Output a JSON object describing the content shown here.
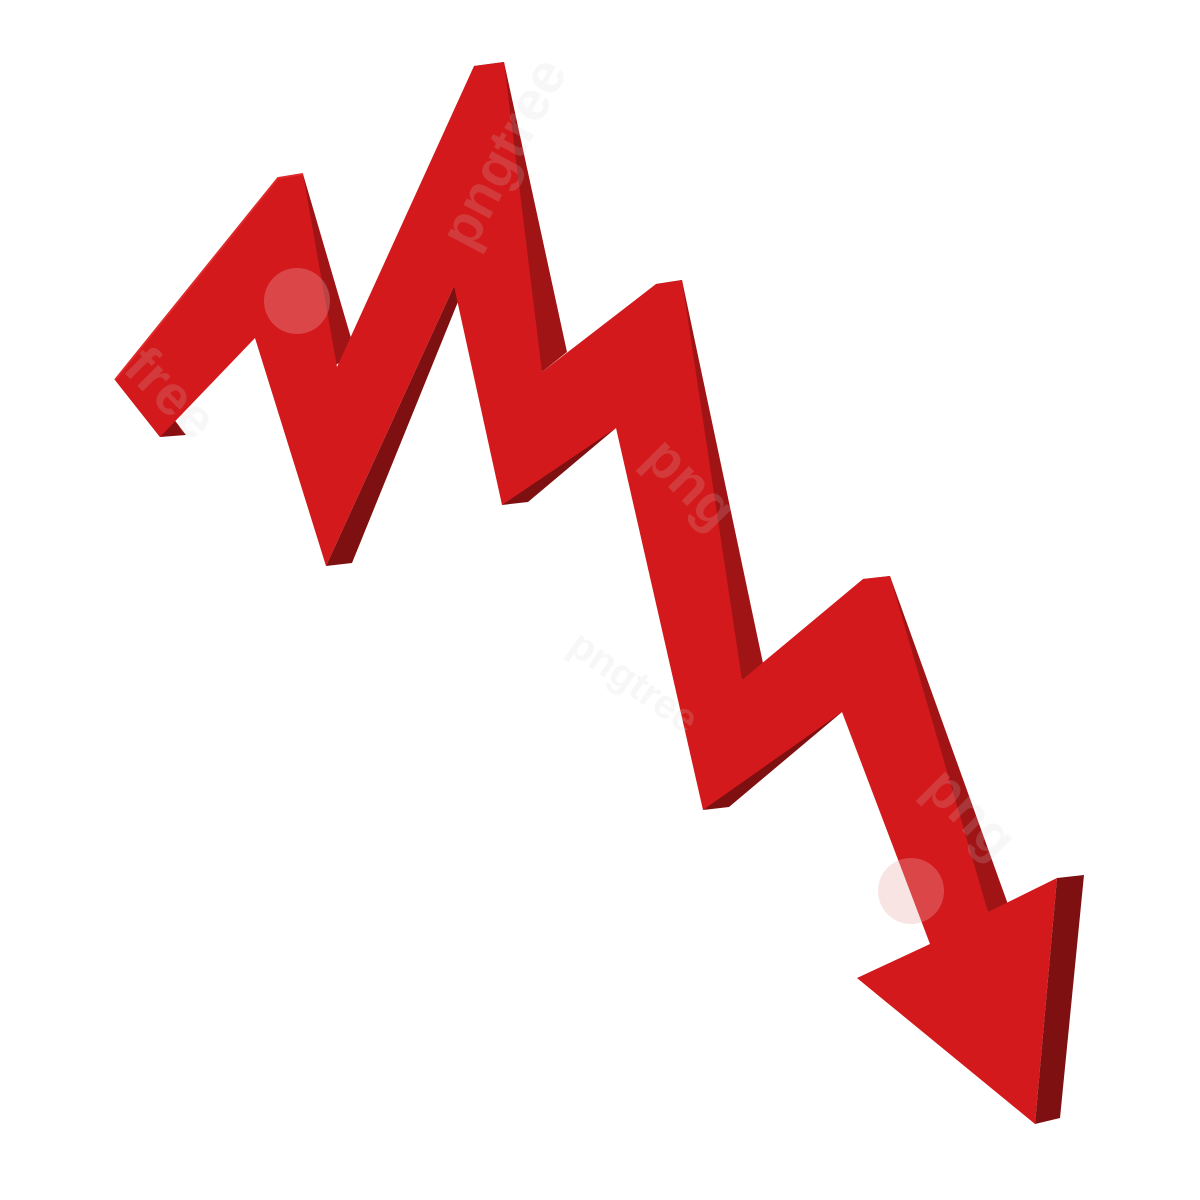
{
  "image": {
    "subject": "red zigzag down arrow",
    "icon": "trend-down-arrow-icon"
  },
  "colors": {
    "background": "#ffffff",
    "arrow_face": "#d3191b",
    "arrow_side": "#a01416",
    "arrow_side_dark": "#7f1012"
  },
  "watermark": {
    "text_1": "pngtree",
    "text_2": "free",
    "text_3": "png",
    "text_4": "png",
    "text_5": "pngtree"
  }
}
